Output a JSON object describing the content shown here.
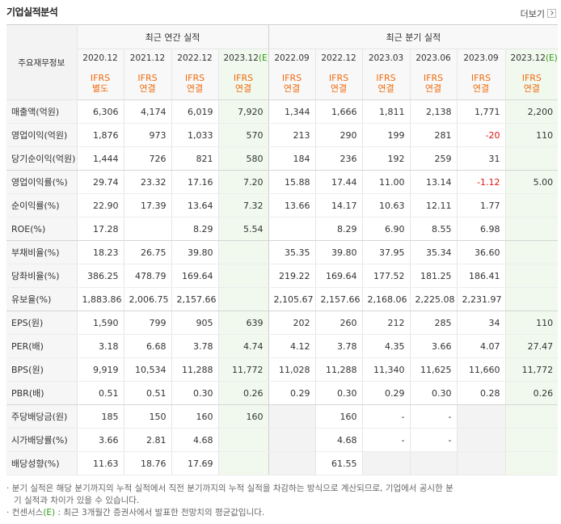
{
  "header": {
    "title": "기업실적분석",
    "more": "더보기"
  },
  "table": {
    "corner": "주요재무정보",
    "groups": [
      "최근 연간 실적",
      "최근 분기 실적"
    ],
    "periods": [
      "2020.12",
      "2021.12",
      "2022.12",
      "2023.12(E)",
      "2022.09",
      "2022.12",
      "2023.03",
      "2023.06",
      "2023.09",
      "2023.12(E)"
    ],
    "accounting": [
      [
        "IFRS",
        "별도"
      ],
      [
        "IFRS",
        "연결"
      ],
      [
        "IFRS",
        "연결"
      ],
      [
        "IFRS",
        "연결"
      ],
      [
        "IFRS",
        "연결"
      ],
      [
        "IFRS",
        "연결"
      ],
      [
        "IFRS",
        "연결"
      ],
      [
        "IFRS",
        "연결"
      ],
      [
        "IFRS",
        "연결"
      ],
      [
        "IFRS",
        "연결"
      ]
    ],
    "rows": [
      {
        "label": "매출액(억원)",
        "values": [
          "6,306",
          "4,174",
          "6,019",
          "7,920",
          "1,344",
          "1,666",
          "1,811",
          "2,138",
          "1,771",
          "2,200"
        ]
      },
      {
        "label": "영업이익(억원)",
        "values": [
          "1,876",
          "973",
          "1,033",
          "570",
          "213",
          "290",
          "199",
          "281",
          "-20",
          "110"
        ]
      },
      {
        "label": "당기순이익(억원)",
        "values": [
          "1,444",
          "726",
          "821",
          "580",
          "184",
          "236",
          "192",
          "259",
          "31",
          null
        ]
      },
      {
        "label": "영업이익률(%)",
        "values": [
          "29.74",
          "23.32",
          "17.16",
          "7.20",
          "15.88",
          "17.44",
          "11.00",
          "13.14",
          "-1.12",
          "5.00"
        ]
      },
      {
        "label": "순이익률(%)",
        "values": [
          "22.90",
          "17.39",
          "13.64",
          "7.32",
          "13.66",
          "14.17",
          "10.63",
          "12.11",
          "1.77",
          null
        ]
      },
      {
        "label": "ROE(%)",
        "values": [
          "17.28",
          null,
          "8.29",
          "5.54",
          null,
          "8.29",
          "6.90",
          "8.55",
          "6.98",
          null
        ]
      },
      {
        "label": "부채비율(%)",
        "values": [
          "18.23",
          "26.75",
          "39.80",
          null,
          "35.35",
          "39.80",
          "37.95",
          "35.34",
          "36.60",
          null
        ]
      },
      {
        "label": "당좌비율(%)",
        "values": [
          "386.25",
          "478.79",
          "169.64",
          null,
          "219.22",
          "169.64",
          "177.52",
          "181.25",
          "186.41",
          null
        ]
      },
      {
        "label": "유보율(%)",
        "values": [
          "1,883.86",
          "2,006.75",
          "2,157.66",
          null,
          "2,105.67",
          "2,157.66",
          "2,168.06",
          "2,225.08",
          "2,231.97",
          null
        ]
      },
      {
        "label": "EPS(원)",
        "values": [
          "1,590",
          "799",
          "905",
          "639",
          "202",
          "260",
          "212",
          "285",
          "34",
          "110"
        ]
      },
      {
        "label": "PER(배)",
        "values": [
          "3.18",
          "6.68",
          "3.78",
          "4.74",
          "4.12",
          "3.78",
          "4.35",
          "3.66",
          "4.07",
          "27.47"
        ]
      },
      {
        "label": "BPS(원)",
        "values": [
          "9,919",
          "10,534",
          "11,288",
          "11,772",
          "11,028",
          "11,288",
          "11,340",
          "11,625",
          "11,660",
          "11,772"
        ]
      },
      {
        "label": "PBR(배)",
        "values": [
          "0.51",
          "0.51",
          "0.30",
          "0.26",
          "0.29",
          "0.30",
          "0.29",
          "0.30",
          "0.28",
          "0.26"
        ]
      },
      {
        "label": "주당배당금(원)",
        "values": [
          "185",
          "150",
          "160",
          "160",
          null,
          "160",
          "-",
          "-",
          null,
          null
        ]
      },
      {
        "label": "시가배당률(%)",
        "values": [
          "3.66",
          "2.81",
          "4.68",
          null,
          null,
          "4.68",
          "-",
          "-",
          null,
          null
        ]
      },
      {
        "label": "배당성향(%)",
        "values": [
          "11.63",
          "18.76",
          "17.69",
          null,
          null,
          "61.55",
          null,
          null,
          null,
          null
        ]
      }
    ]
  },
  "notes": [
    "분기 실적은 해당 분기까지의 누적 실적에서 직전 분기까지의 누적 실적을 차감하는 방식으로 계산되므로, 기업에서 공시한 분기 실적과 차이가 있을 수 있습니다.",
    "컨센서스(E) : 최근 3개월간 증권사에서 발표한 전망치의 평균값입니다."
  ]
}
